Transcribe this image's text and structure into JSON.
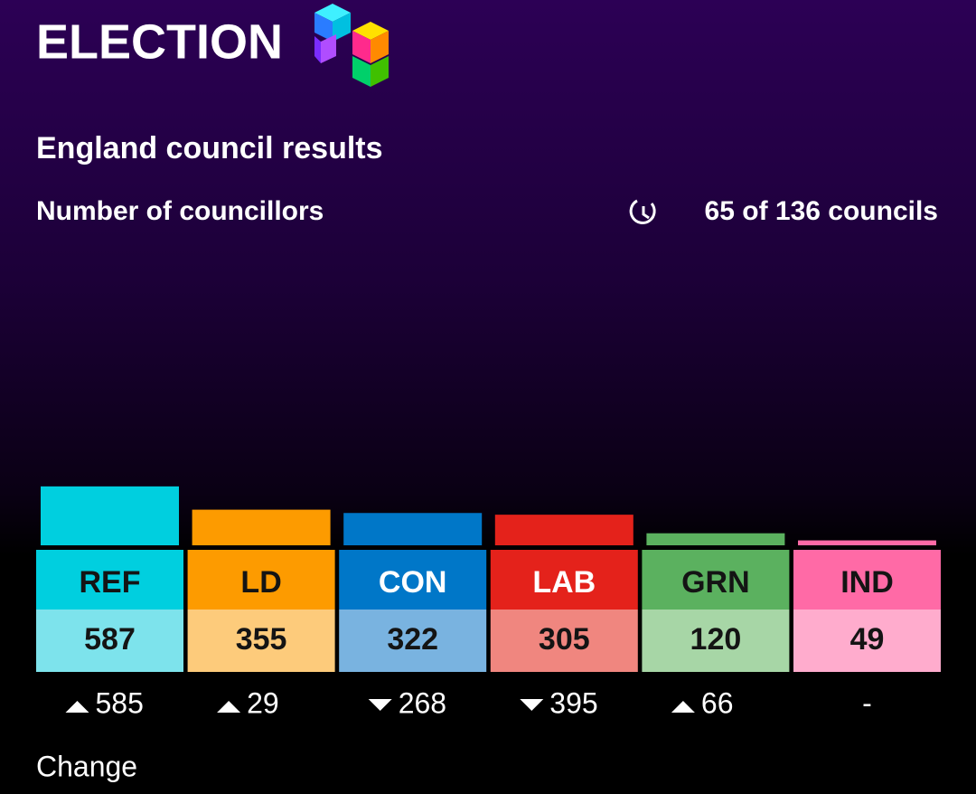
{
  "header": {
    "brand": "ELECTION"
  },
  "chart_data": {
    "type": "bar",
    "title": "England council results",
    "subtitle": "Number of councillors",
    "progress": "65 of 136 councils",
    "categories": [
      "REF",
      "LD",
      "CON",
      "LAB",
      "GRN",
      "IND"
    ],
    "values": [
      587,
      355,
      322,
      305,
      120,
      49
    ],
    "colors": [
      "#00cfdf",
      "#fd9b00",
      "#0077c8",
      "#e4221b",
      "#5bb15f",
      "#ff6aa6"
    ],
    "light_colors": [
      "#7de3ec",
      "#fdcb7b",
      "#79b3e0",
      "#f0867f",
      "#a7d6a6",
      "#ffaccd"
    ],
    "label_text_colors": [
      "#141414",
      "#141414",
      "#ffffff",
      "#ffffff",
      "#141414",
      "#141414"
    ],
    "changes": [
      585,
      29,
      -268,
      -395,
      66,
      null
    ],
    "change_labels": [
      "585",
      "29",
      "268",
      "395",
      "66",
      "-"
    ],
    "change_title": "Change"
  }
}
